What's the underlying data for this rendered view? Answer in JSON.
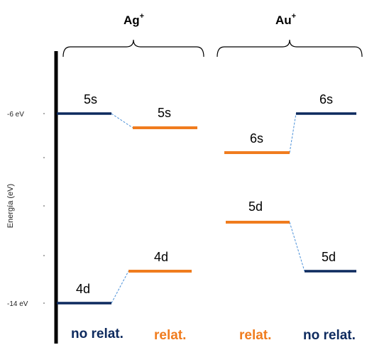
{
  "axis": {
    "title": "Energía (eV)",
    "tick_top": "-6 eV",
    "tick_bottom": "-14 eV"
  },
  "groups": [
    {
      "name": "Ag",
      "charge": "+"
    },
    {
      "name": "Au",
      "charge": "+"
    }
  ],
  "columns": [
    {
      "label": "no relat.",
      "color": "#0d2a5e"
    },
    {
      "label": "relat.",
      "color": "#f07c1e"
    },
    {
      "label": "relat.",
      "color": "#f07c1e"
    },
    {
      "label": "no relat.",
      "color": "#0d2a5e"
    }
  ],
  "levels": {
    "ag_nonrel_5s": {
      "label": "5s",
      "energy_ev": -6.0
    },
    "ag_nonrel_4d": {
      "label": "4d",
      "energy_ev": -14.0
    },
    "ag_rel_5s": {
      "label": "5s",
      "energy_ev": -6.6
    },
    "ag_rel_4d": {
      "label": "4d",
      "energy_ev": -12.7
    },
    "au_rel_6s": {
      "label": "6s",
      "energy_ev": -7.7
    },
    "au_rel_5d": {
      "label": "5d",
      "energy_ev": -10.7
    },
    "au_nonrel_6s": {
      "label": "6s",
      "energy_ev": -6.0
    },
    "au_nonrel_5d": {
      "label": "5d",
      "energy_ev": -12.7
    }
  },
  "colors": {
    "nonrel": "#0d2a5e",
    "rel": "#f07c1e",
    "connector": "#4a90d9",
    "axis": "#000000"
  }
}
